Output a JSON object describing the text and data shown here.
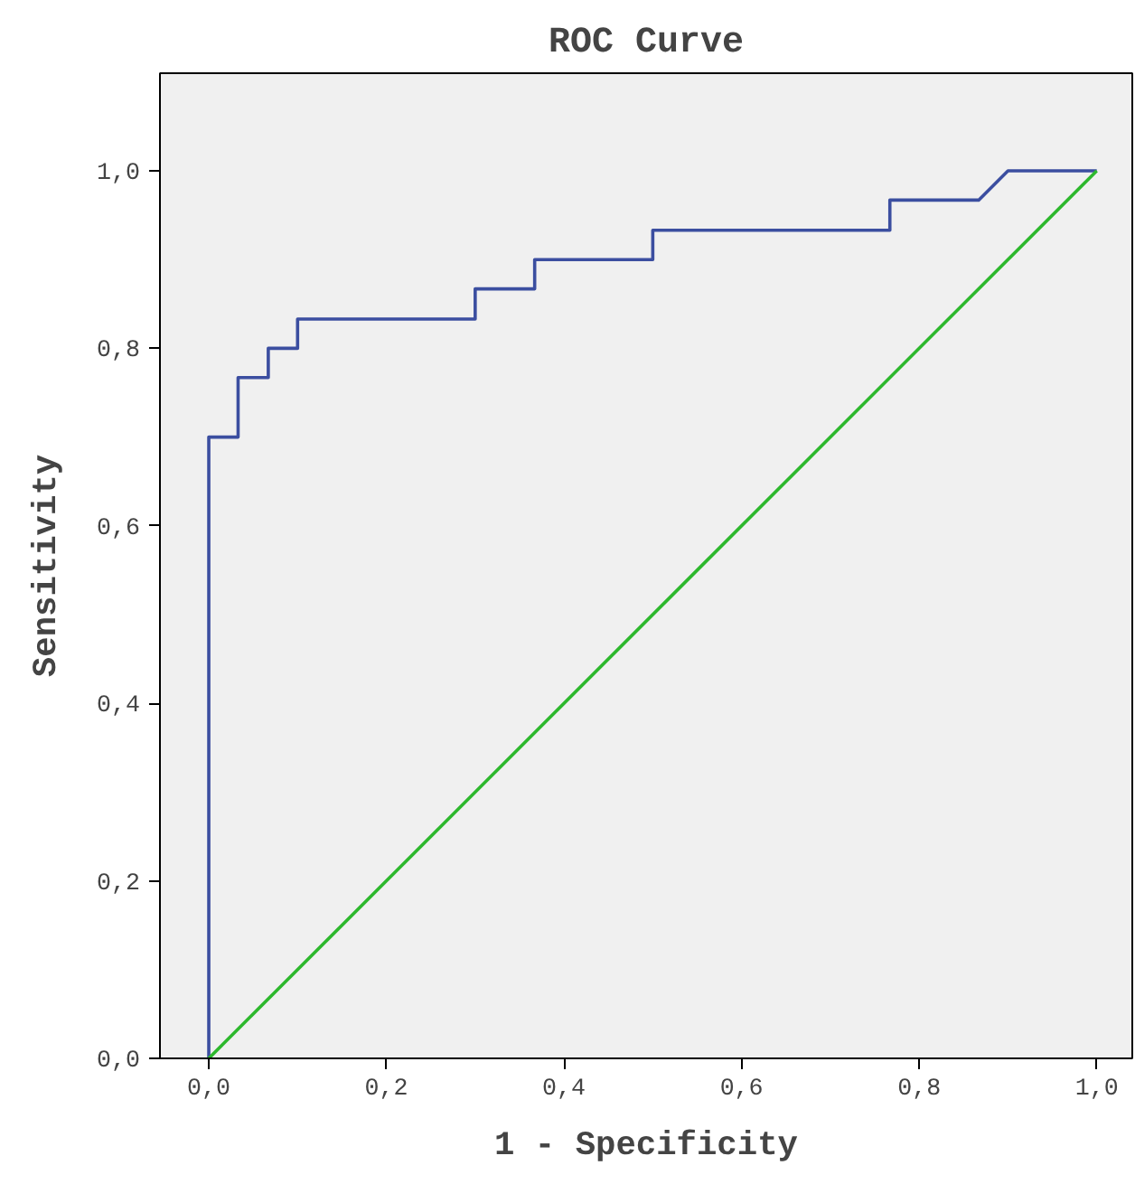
{
  "chart_data": {
    "type": "line",
    "title": "ROC Curve",
    "xlabel": "1 - Specificity",
    "ylabel": "Sensitivity",
    "series": [
      {
        "color": "#3b4ea0",
        "x": [
          0,
          0,
          0.033,
          0.033,
          0.067,
          0.067,
          0.1,
          0.1,
          0.3,
          0.3,
          0.367,
          0.367,
          0.5,
          0.5,
          0.767,
          0.767,
          0.867,
          0.9,
          1.0
        ],
        "values": [
          0,
          0.7,
          0.7,
          0.767,
          0.767,
          0.8,
          0.8,
          0.833,
          0.833,
          0.867,
          0.867,
          0.9,
          0.9,
          0.933,
          0.933,
          0.967,
          0.967,
          1.0,
          1.0
        ]
      },
      {
        "color": "#2db82d",
        "x": [
          0,
          1
        ],
        "values": [
          0,
          1
        ]
      }
    ],
    "xlim": [
      -0.055,
      1.04
    ],
    "ylim": [
      0,
      1.11
    ],
    "xticks": [
      {
        "value": 0,
        "label": "0,0"
      },
      {
        "value": 0.2,
        "label": "0,2"
      },
      {
        "value": 0.4,
        "label": "0,4"
      },
      {
        "value": 0.6,
        "label": "0,6"
      },
      {
        "value": 0.8,
        "label": "0,8"
      },
      {
        "value": 1,
        "label": "1,0"
      }
    ],
    "yticks": [
      {
        "value": 0,
        "label": "0,0"
      },
      {
        "value": 0.2,
        "label": "0,2"
      },
      {
        "value": 0.4,
        "label": "0,4"
      },
      {
        "value": 0.6,
        "label": "0,6"
      },
      {
        "value": 0.8,
        "label": "0,8"
      },
      {
        "value": 1,
        "label": "1,0"
      }
    ]
  }
}
